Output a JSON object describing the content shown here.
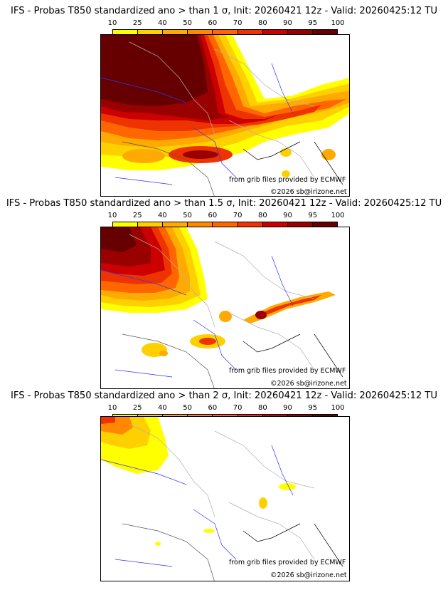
{
  "colorbar": {
    "ticks": [
      "10",
      "25",
      "40",
      "50",
      "60",
      "70",
      "80",
      "90",
      "95",
      "100"
    ],
    "colors": [
      "#ffff00",
      "#ffd000",
      "#ffaa00",
      "#ff8800",
      "#ff6600",
      "#ee3300",
      "#cc0000",
      "#990000",
      "#660000"
    ]
  },
  "panels": [
    {
      "title": "IFS - Probas T850  standardized ano > than 1 σ, Init: 20260421 12z - Valid: 20260425:12 TU",
      "credit_source": "from grib files provided by ECMWF",
      "credit_copyright": "©2026 sb@irizone.net"
    },
    {
      "title": "IFS - Probas T850  standardized ano > than 1.5 σ, Init: 20260421 12z - Valid: 20260425:12 TU",
      "credit_source": "from grib files provided by ECMWF",
      "credit_copyright": "©2026 sb@irizone.net"
    },
    {
      "title": "IFS - Probas T850  standardized ano > than 2 σ, Init: 20260421 12z - Valid: 20260425:12 TU",
      "credit_source": "from grib files provided by ECMWF",
      "credit_copyright": "©2026 sb@irizone.net"
    }
  ]
}
